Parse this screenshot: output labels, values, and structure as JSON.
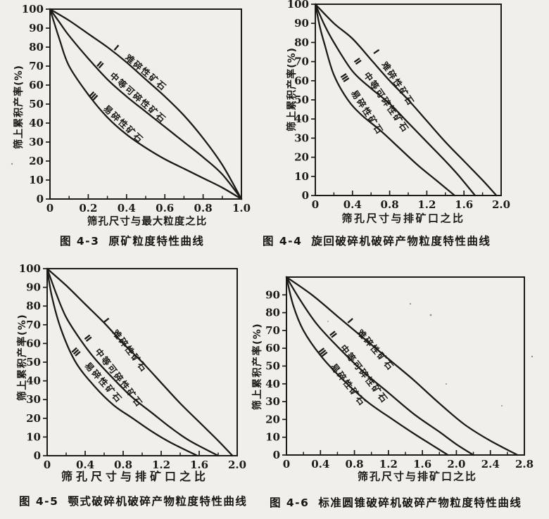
{
  "page": {
    "background": "#f1efea",
    "ink": "#1c1b18"
  },
  "chart_data": [
    {
      "id": "fig-4-3",
      "type": "line",
      "figure_no": "图 4-3",
      "caption": "原矿粒度特性曲线",
      "xlabel": "筛孔尺寸与最大粒度之比",
      "ylabel": "筛上累积产率(%)",
      "xlim": [
        0,
        1.0
      ],
      "ylim": [
        0,
        100
      ],
      "grid": false,
      "legend": "labels-along-curves",
      "x_ticks": [
        "0",
        "0.2",
        "0.4",
        "0.6",
        "0.8",
        "1.0"
      ],
      "x_minor_step": 0.1,
      "y_ticks": [
        "0",
        "10",
        "20",
        "30",
        "40",
        "50",
        "60",
        "70",
        "80",
        "90",
        "100"
      ],
      "series": [
        {
          "numeral": "Ⅰ",
          "label": "难碎性矿石",
          "points": [
            [
              0,
              100
            ],
            [
              0.1,
              94
            ],
            [
              0.2,
              87
            ],
            [
              0.3,
              80
            ],
            [
              0.4,
              72
            ],
            [
              0.5,
              63
            ],
            [
              0.6,
              54
            ],
            [
              0.7,
              44
            ],
            [
              0.8,
              32
            ],
            [
              0.9,
              18
            ],
            [
              1,
              0
            ]
          ],
          "label_anchor": [
            0.33,
            79
          ],
          "label_angle": 40
        },
        {
          "numeral": "Ⅱ",
          "label": "中等可碎性矿石",
          "points": [
            [
              0,
              100
            ],
            [
              0.05,
              93
            ],
            [
              0.1,
              86
            ],
            [
              0.2,
              74
            ],
            [
              0.3,
              63
            ],
            [
              0.4,
              54
            ],
            [
              0.5,
              46
            ],
            [
              0.6,
              38
            ],
            [
              0.7,
              30
            ],
            [
              0.8,
              22
            ],
            [
              0.9,
              13
            ],
            [
              1,
              0
            ]
          ],
          "label_anchor": [
            0.24,
            70.5
          ],
          "label_angle": 41
        },
        {
          "numeral": "Ⅲ",
          "label": "易碎性矿石",
          "points": [
            [
              0,
              100
            ],
            [
              0.05,
              84
            ],
            [
              0.1,
              70
            ],
            [
              0.2,
              55
            ],
            [
              0.3,
              43
            ],
            [
              0.4,
              34
            ],
            [
              0.5,
              27
            ],
            [
              0.6,
              21
            ],
            [
              0.7,
              16
            ],
            [
              0.8,
              11
            ],
            [
              0.9,
              6
            ],
            [
              1,
              0
            ]
          ],
          "label_anchor": [
            0.2,
            54.5
          ],
          "label_angle": 43
        }
      ]
    },
    {
      "id": "fig-4-4",
      "type": "line",
      "figure_no": "图 4-4",
      "caption": "旋回破碎机破碎产物粒度特性曲线",
      "xlabel": "筛孔尺寸与排矿口之比",
      "ylabel": "筛上累积产率(%)",
      "xlim": [
        0,
        2.0
      ],
      "ylim": [
        0,
        100
      ],
      "grid": false,
      "legend": "labels-along-curves",
      "x_ticks": [
        "0",
        "0.4",
        "0.8",
        "1.2",
        "1.6",
        "2.0"
      ],
      "x_minor_step": 0.2,
      "y_ticks": [
        "0",
        "10",
        "20",
        "30",
        "40",
        "50",
        "60",
        "70",
        "80",
        "90",
        "100"
      ],
      "series": [
        {
          "numeral": "Ⅰ",
          "label": "难碎性矿石",
          "points": [
            [
              0,
              100
            ],
            [
              0.2,
              90
            ],
            [
              0.4,
              82
            ],
            [
              0.6,
              71
            ],
            [
              0.8,
              60
            ],
            [
              1.0,
              50
            ],
            [
              1.2,
              39
            ],
            [
              1.4,
              28
            ],
            [
              1.6,
              18
            ],
            [
              1.8,
              8
            ],
            [
              1.95,
              0
            ]
          ],
          "label_anchor": [
            0.62,
            75
          ],
          "label_angle": 56
        },
        {
          "numeral": "Ⅱ",
          "label": "中等可碎性矿石",
          "points": [
            [
              0,
              100
            ],
            [
              0.1,
              89
            ],
            [
              0.2,
              80
            ],
            [
              0.4,
              65
            ],
            [
              0.6,
              56
            ],
            [
              0.8,
              48
            ],
            [
              1.0,
              38
            ],
            [
              1.2,
              28
            ],
            [
              1.4,
              18
            ],
            [
              1.55,
              10
            ],
            [
              1.72,
              0
            ]
          ],
          "label_anchor": [
            0.41,
            70.5
          ],
          "label_angle": 55
        },
        {
          "numeral": "Ⅲ",
          "label": "易碎性矿石",
          "points": [
            [
              0,
              100
            ],
            [
              0.05,
              88
            ],
            [
              0.1,
              79
            ],
            [
              0.2,
              63
            ],
            [
              0.35,
              50
            ],
            [
              0.5,
              42
            ],
            [
              0.7,
              34
            ],
            [
              0.9,
              25
            ],
            [
              1.1,
              16
            ],
            [
              1.3,
              8
            ],
            [
              1.5,
              0
            ]
          ],
          "label_anchor": [
            0.265,
            62.5
          ],
          "label_angle": 57
        }
      ]
    },
    {
      "id": "fig-4-5",
      "type": "line",
      "figure_no": "图 4-5",
      "caption": "颚式破碎机破碎产物粒度特性曲线",
      "xlabel": "筛孔尺寸与排矿口之比",
      "ylabel": "筛上累积产率(%)",
      "xlim": [
        0,
        2.0
      ],
      "ylim": [
        0,
        100
      ],
      "grid": false,
      "legend": "labels-along-curves",
      "x_ticks": [
        "0",
        "0.4",
        "0.8",
        "1.2",
        "1.6",
        "2.0"
      ],
      "x_minor_step": 0.2,
      "y_ticks": [
        "0",
        "10",
        "20",
        "30",
        "40",
        "50",
        "60",
        "70",
        "80",
        "90",
        "100"
      ],
      "series": [
        {
          "numeral": "Ⅰ",
          "label": "难碎性矿石",
          "points": [
            [
              0,
              100
            ],
            [
              0.2,
              91
            ],
            [
              0.4,
              81
            ],
            [
              0.6,
              71
            ],
            [
              0.8,
              60
            ],
            [
              1.0,
              50
            ],
            [
              1.2,
              39
            ],
            [
              1.4,
              28
            ],
            [
              1.6,
              18
            ],
            [
              1.8,
              8
            ],
            [
              1.95,
              0
            ]
          ],
          "label_anchor": [
            0.585,
            72
          ],
          "label_angle": 52
        },
        {
          "numeral": "Ⅱ",
          "label": "中等可碎性矿石",
          "points": [
            [
              0,
              100
            ],
            [
              0.1,
              86
            ],
            [
              0.2,
              74
            ],
            [
              0.35,
              62
            ],
            [
              0.5,
              52
            ],
            [
              0.7,
              41
            ],
            [
              0.9,
              31
            ],
            [
              1.1,
              23
            ],
            [
              1.3,
              15
            ],
            [
              1.5,
              8
            ],
            [
              1.8,
              0
            ]
          ],
          "label_anchor": [
            0.385,
            63
          ],
          "label_angle": 52
        },
        {
          "numeral": "Ⅲ",
          "label": "易碎性矿石",
          "points": [
            [
              0,
              100
            ],
            [
              0.05,
              85
            ],
            [
              0.15,
              67
            ],
            [
              0.3,
              50
            ],
            [
              0.5,
              37
            ],
            [
              0.7,
              27
            ],
            [
              0.9,
              20
            ],
            [
              1.1,
              13
            ],
            [
              1.3,
              7
            ],
            [
              1.58,
              0
            ]
          ],
          "label_anchor": [
            0.25,
            56
          ],
          "label_angle": 48
        }
      ]
    },
    {
      "id": "fig-4-6",
      "type": "line",
      "figure_no": "图 4-6",
      "caption": "标准圆锥破碎机破碎产物粒度特性曲线",
      "xlabel": "筛孔尺寸与排矿口之比",
      "ylabel": "筛上累积产率(%)",
      "xlim": [
        0,
        2.8
      ],
      "ylim": [
        0,
        100
      ],
      "grid": false,
      "legend": "labels-along-curves",
      "x_ticks": [
        "0",
        "0.4",
        "0.8",
        "1.2",
        "1.6",
        "2.0",
        "2.4",
        "2.8"
      ],
      "x_minor_step": 0.2,
      "y_ticks": [
        "0",
        "10",
        "20",
        "30",
        "40",
        "50",
        "60",
        "70",
        "80",
        "90"
      ],
      "series": [
        {
          "numeral": "Ⅰ",
          "label": "难碎性矿石",
          "points": [
            [
              0,
              100
            ],
            [
              0.3,
              90
            ],
            [
              0.6,
              78
            ],
            [
              0.9,
              66
            ],
            [
              1.2,
              54
            ],
            [
              1.5,
              42
            ],
            [
              1.8,
              29
            ],
            [
              2.1,
              17
            ],
            [
              2.4,
              8
            ],
            [
              2.72,
              0
            ]
          ],
          "label_anchor": [
            0.71,
            75
          ],
          "label_angle": 49
        },
        {
          "numeral": "Ⅱ",
          "label": "中等可碎性矿石",
          "points": [
            [
              0,
              100
            ],
            [
              0.15,
              88
            ],
            [
              0.35,
              74
            ],
            [
              0.6,
              61
            ],
            [
              0.9,
              47
            ],
            [
              1.2,
              35
            ],
            [
              1.5,
              23
            ],
            [
              1.8,
              13
            ],
            [
              2.0,
              6
            ],
            [
              2.2,
              0
            ]
          ],
          "label_anchor": [
            0.5,
            68
          ],
          "label_angle": 52
        },
        {
          "numeral": "Ⅲ",
          "label": "易碎性矿石",
          "points": [
            [
              0,
              100
            ],
            [
              0.08,
              84
            ],
            [
              0.2,
              70
            ],
            [
              0.4,
              56
            ],
            [
              0.65,
              43
            ],
            [
              0.95,
              30
            ],
            [
              1.25,
              20
            ],
            [
              1.5,
              12
            ],
            [
              1.7,
              6
            ],
            [
              1.9,
              0
            ]
          ],
          "label_anchor": [
            0.37,
            58.5
          ],
          "label_angle": 52
        }
      ]
    }
  ]
}
